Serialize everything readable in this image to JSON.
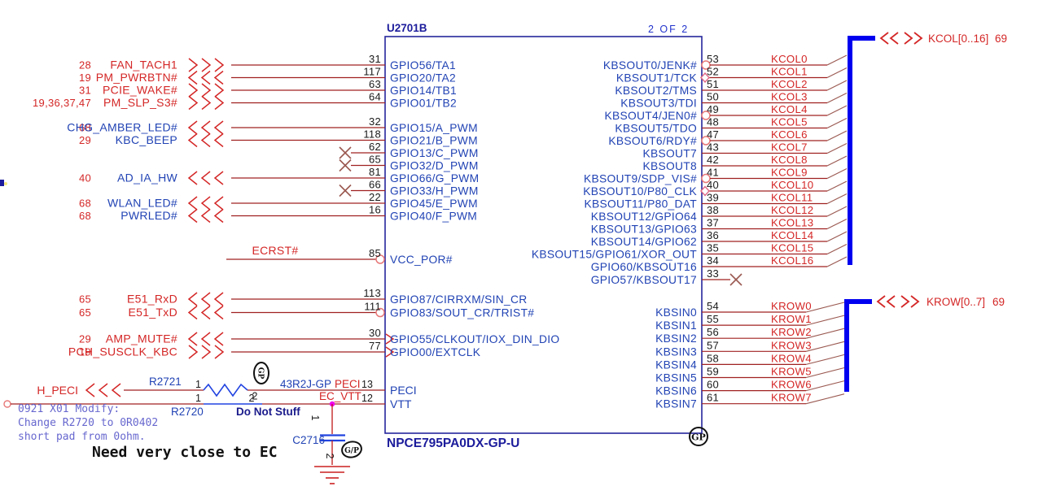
{
  "chip": {
    "refdes": "U2701B",
    "page_note": "2 OF 2",
    "part_number": "NPCE795PA0DX-GP-U",
    "gp_mark": "GP"
  },
  "colors": {
    "wire": "#a02020",
    "net_label_red": "#d42626",
    "label_blue": "#2143b4",
    "chip_outline": "#26269c",
    "bus_blue": "#0000f0",
    "note_purple": "#6767cf",
    "junction_magenta": "#f000f0",
    "pin_number_black": "#1a1a1a",
    "tap_brown": "#9a5850",
    "bubble_pink": "#e87878"
  },
  "left_rows": [
    {
      "pages": "28",
      "net": "FAN_TACH1",
      "net_color": "red",
      "dir": "out",
      "pin": "31",
      "pin_name": "GPIO56/TA1"
    },
    {
      "pages": "19",
      "net": "PM_PWRBTN#",
      "net_color": "red",
      "dir": "in",
      "pin": "117",
      "pin_name": "GPIO20/TA2"
    },
    {
      "pages": "31",
      "net": "PCIE_WAKE#",
      "net_color": "red",
      "dir": "out",
      "pin": "63",
      "pin_name": "GPIO14/TB1"
    },
    {
      "pages": "19,36,37,47",
      "net": "PM_SLP_S3#",
      "net_color": "red",
      "dir": "out",
      "pin": "64",
      "pin_name": "GPIO01/TB2"
    },
    {
      "pages": "68",
      "net": "CHG_AMBER_LED#",
      "net_color": "blue",
      "dir": "in",
      "pin": "32",
      "pin_name": "GPIO15/A_PWM"
    },
    {
      "pages": "29",
      "net": "KBC_BEEP",
      "net_color": "blue",
      "dir": "in",
      "pin": "118",
      "pin_name": "GPIO21/B_PWM"
    },
    {
      "nc": true,
      "pin": "62",
      "pin_name": "GPIO13/C_PWM"
    },
    {
      "nc": true,
      "pin": "65",
      "pin_name": "GPIO32/D_PWM"
    },
    {
      "pages": "40",
      "net": "AD_IA_HW",
      "net_color": "blue",
      "dir": "in",
      "pin": "81",
      "pin_name": "GPIO66/G_PWM"
    },
    {
      "nc": true,
      "pin": "66",
      "pin_name": "GPIO33/H_PWM"
    },
    {
      "pages": "68",
      "net": "WLAN_LED#",
      "net_color": "blue",
      "dir": "in",
      "pin": "22",
      "pin_name": "GPIO45/E_PWM"
    },
    {
      "pages": "68",
      "net": "PWRLED#",
      "net_color": "blue",
      "dir": "in",
      "pin": "16",
      "pin_name": "GPIO40/F_PWM"
    },
    {
      "net": "ECRST#",
      "net_color": "red",
      "label_on_wire": true,
      "bubble": true,
      "pin": "85",
      "pin_name": "VCC_POR#"
    },
    {
      "pages": "65",
      "net": "E51_RxD",
      "net_color": "red",
      "dir": "in",
      "pin": "113",
      "pin_name": "GPIO87/CIRRXM/SIN_CR"
    },
    {
      "pages": "65",
      "net": "E51_TxD",
      "net_color": "red",
      "dir": "in",
      "bubble": true,
      "pin": "111",
      "pin_name": "GPIO83/SOUT_CR/TRIST#"
    },
    {
      "pages": "29",
      "net": "AMP_MUTE#",
      "net_color": "red",
      "dir": "in",
      "arrow": true,
      "pin": "30",
      "pin_name": "GPIO55/CLKOUT/IOX_DIN_DIO"
    },
    {
      "pages": "19",
      "net": "PCH_SUSCLK_KBC",
      "net_color": "red",
      "dir": "out",
      "arrow": true,
      "pin": "77",
      "pin_name": "GPIO00/EXTCLK"
    }
  ],
  "right_rows": [
    {
      "pin": "53",
      "pin_name": "KBSOUT0/JENK#",
      "net": "KCOL0",
      "bubble": true
    },
    {
      "pin": "52",
      "pin_name": "KBSOUT1/TCK",
      "net": "KCOL1",
      "diamond": true
    },
    {
      "pin": "51",
      "pin_name": "KBSOUT2/TMS",
      "net": "KCOL2"
    },
    {
      "pin": "50",
      "pin_name": "KBSOUT3/TDI",
      "net": "KCOL3"
    },
    {
      "pin": "49",
      "pin_name": "KBSOUT4/JEN0#",
      "net": "KCOL4",
      "bubble": true
    },
    {
      "pin": "48",
      "pin_name": "KBSOUT5/TDO",
      "net": "KCOL5"
    },
    {
      "pin": "47",
      "pin_name": "KBSOUT6/RDY#",
      "net": "KCOL6",
      "bubble": true
    },
    {
      "pin": "43",
      "pin_name": "KBSOUT7",
      "net": "KCOL7"
    },
    {
      "pin": "42",
      "pin_name": "KBSOUT8",
      "net": "KCOL8"
    },
    {
      "pin": "41",
      "pin_name": "KBSOUT9/SDP_VIS#",
      "net": "KCOL9",
      "bubble": true
    },
    {
      "pin": "40",
      "pin_name": "KBSOUT10/P80_CLK",
      "net": "KCOL10",
      "diamond": true
    },
    {
      "pin": "39",
      "pin_name": "KBSOUT11/P80_DAT",
      "net": "KCOL11"
    },
    {
      "pin": "38",
      "pin_name": "KBSOUT12/GPIO64",
      "net": "KCOL12"
    },
    {
      "pin": "37",
      "pin_name": "KBSOUT13/GPIO63",
      "net": "KCOL13"
    },
    {
      "pin": "36",
      "pin_name": "KBSOUT14/GPIO62",
      "net": "KCOL14"
    },
    {
      "pin": "35",
      "pin_name": "KBSOUT15/GPIO61/XOR_OUT",
      "net": "KCOL15"
    },
    {
      "pin": "34",
      "pin_name": "GPIO60/KBSOUT16",
      "net": "KCOL16"
    },
    {
      "pin": "33",
      "pin_name": "GPIO57/KBSOUT17",
      "nc": true
    }
  ],
  "kbsin_rows": [
    {
      "pin": "54",
      "pin_name": "KBSIN0",
      "net": "KROW0"
    },
    {
      "pin": "55",
      "pin_name": "KBSIN1",
      "net": "KROW1"
    },
    {
      "pin": "56",
      "pin_name": "KBSIN2",
      "net": "KROW2"
    },
    {
      "pin": "57",
      "pin_name": "KBSIN3",
      "net": "KROW3"
    },
    {
      "pin": "58",
      "pin_name": "KBSIN4",
      "net": "KROW4"
    },
    {
      "pin": "59",
      "pin_name": "KBSIN5",
      "net": "KROW5"
    },
    {
      "pin": "60",
      "pin_name": "KBSIN6",
      "net": "KROW6"
    },
    {
      "pin": "61",
      "pin_name": "KBSIN7",
      "net": "KROW7"
    }
  ],
  "buses": [
    {
      "label": "KCOL[0..16]",
      "page": "69"
    },
    {
      "label": "KROW[0..7]",
      "page": "69"
    }
  ],
  "peci": {
    "h_peci_net": "H_PECI",
    "r2721": {
      "refdes": "R2721",
      "value": "43R2J-GP",
      "pin1": "1",
      "pin2": "2"
    },
    "r2720": {
      "refdes": "R2720",
      "stuff_note": "Do Not Stuff",
      "pin1": "1",
      "pin2": "2"
    },
    "peci_net": "PECI",
    "ecvtt_net": "EC_VTT",
    "peci_pin": {
      "number": "13",
      "name": "PECI"
    },
    "vtt_pin": {
      "number": "12",
      "name": "VTT"
    },
    "c2716": {
      "refdes": "C2716",
      "pin1": "1",
      "pin2": "2"
    },
    "gp_mark_r2721": "GP",
    "gp_mark_c2716": "G/P"
  },
  "notes": {
    "modify_lines": [
      "0921 X01 Modify:",
      "Change R2720 to 0R0402",
      "short pad from 0ohm."
    ],
    "ec_note": "Need very close to EC"
  }
}
